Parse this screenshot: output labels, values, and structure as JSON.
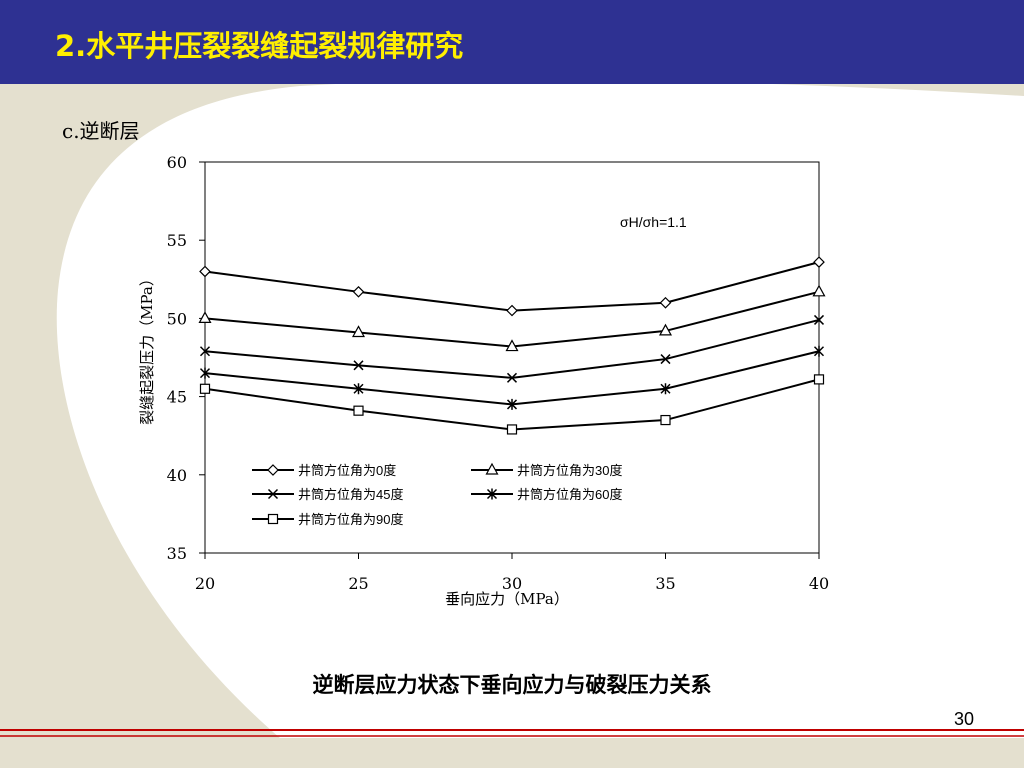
{
  "slide": {
    "title": "2.水平井压裂裂缝起裂规律研究",
    "section": "c.逆断层",
    "caption": "逆断层应力状态下垂向应力与破裂压力关系",
    "page_number": "30"
  },
  "colors": {
    "header": "#2e3192",
    "title": "#ffef00",
    "background_swoosh": "#e4e0cf",
    "red_line": "#c00000"
  },
  "chart_data": {
    "type": "line",
    "xlabel": "垂向应力（MPa）",
    "ylabel": "裂缝起裂压力（MPa）",
    "annotation": "σH/σh=1.1",
    "x": [
      20,
      25,
      30,
      35,
      40
    ],
    "xlim": [
      20,
      40
    ],
    "ylim": [
      35,
      60
    ],
    "xticks": [
      20,
      25,
      30,
      35,
      40
    ],
    "yticks": [
      35,
      40,
      45,
      50,
      55,
      60
    ],
    "grid": false,
    "legend_position": "bottom-left",
    "series": [
      {
        "name": "井筒方位角为0度",
        "marker": "diamond",
        "values": [
          53.0,
          51.7,
          50.5,
          51.0,
          53.6
        ]
      },
      {
        "name": "井筒方位角为30度",
        "marker": "triangle",
        "values": [
          50.0,
          49.1,
          48.2,
          49.2,
          51.7
        ]
      },
      {
        "name": "井筒方位角为45度",
        "marker": "x",
        "values": [
          47.9,
          47.0,
          46.2,
          47.4,
          49.9
        ]
      },
      {
        "name": "井筒方位角为60度",
        "marker": "star",
        "values": [
          46.5,
          45.5,
          44.5,
          45.5,
          47.9
        ]
      },
      {
        "name": "井筒方位角为90度",
        "marker": "square",
        "values": [
          45.5,
          44.1,
          42.9,
          43.5,
          46.1
        ]
      }
    ]
  }
}
